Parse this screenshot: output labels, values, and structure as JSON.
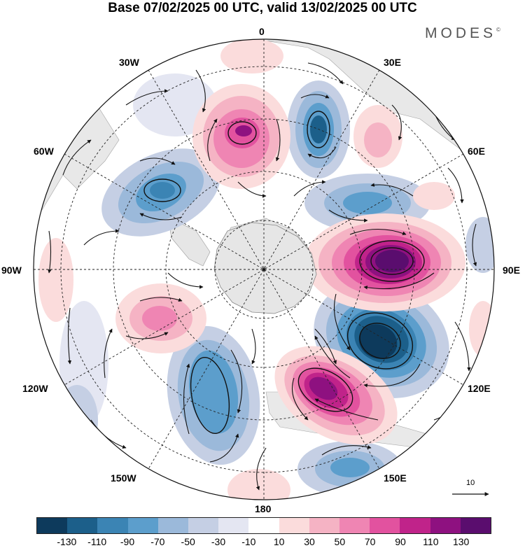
{
  "title": "Base 07/02/2025 00 UTC, valid 13/02/2025 00 UTC",
  "logo": {
    "text": "MODES",
    "mark": "©"
  },
  "map": {
    "projection": "south-polar-stereographic",
    "longitude_labels": {
      "top": "0",
      "top_left": "30W",
      "top_right": "30E",
      "upper_left": "60W",
      "upper_right": "60E",
      "left": "90W",
      "right": "90E",
      "lower_left": "120W",
      "lower_right": "120E",
      "bottom_left": "150W",
      "bottom_right": "150E",
      "bottom": "180"
    },
    "reference_vector": "10"
  },
  "colorbar": {
    "colors": [
      "#0d3a5c",
      "#1c5f8a",
      "#3b84b4",
      "#5c9ecc",
      "#9bb9da",
      "#c5cfe4",
      "#e4e6f2",
      "#ffffff",
      "#fbdcdc",
      "#f5b3c4",
      "#ef85b3",
      "#e2529f",
      "#c0238a",
      "#8e1180",
      "#5a0d6e"
    ],
    "ticks": [
      "-130",
      "-110",
      "-90",
      "-70",
      "-50",
      "-30",
      "-10",
      "10",
      "30",
      "50",
      "70",
      "90",
      "110",
      "130"
    ]
  }
}
